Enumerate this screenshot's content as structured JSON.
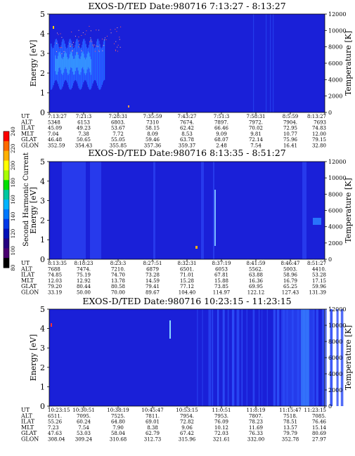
{
  "cbar": {
    "label": "Second Harmonic Current",
    "ticks": [
      "240",
      "220",
      "200",
      "180",
      "160",
      "140",
      "120",
      "100",
      "80"
    ],
    "colors": [
      "#ff0000",
      "#ff6a00",
      "#ffb000",
      "#ffff00",
      "#a8ff00",
      "#00e000",
      "#00c8a0",
      "#00b4ff",
      "#0078ff",
      "#0038e8",
      "#0010b8",
      "#240080",
      "#4a0070",
      "#000000"
    ]
  },
  "chart_data": [
    {
      "type": "heatmap",
      "title": "EXOS-D/TED   Date:980716   7:13:27 - 8:13:27",
      "ylabel": "Energy [eV]",
      "y2label": "Temperature [K]",
      "ylim": [
        0,
        5
      ],
      "yticks": [
        "0",
        "1",
        "2",
        "3",
        "4",
        "5"
      ],
      "y2lim": [
        0,
        12000
      ],
      "y2ticks": [
        "0",
        "2000",
        "4000",
        "6000",
        "8000",
        "10000",
        "12000"
      ],
      "background": "#1a20d8",
      "row_labels": [
        "UT",
        "ALT",
        "ILAT",
        "MLT",
        "GLAT",
        "GLON"
      ],
      "rows": [
        [
          "7:13:27",
          "7:21:3",
          "7:28:31",
          "7:35:59",
          "7:43:27",
          "7:51:3",
          "7:58:31",
          "8:5:59",
          "8:13:27"
        ],
        [
          "5348",
          "6153",
          "6803.",
          "7310",
          "7674.",
          "7897.",
          "7972.",
          "7904.",
          "7693"
        ],
        [
          "45.09",
          "49.23",
          "53.67",
          "58.15",
          "62.42",
          "66.46",
          "70.02",
          "72.95",
          "74.83"
        ],
        [
          "7.04",
          "7.38",
          "7.72",
          "8.09",
          "8.53",
          "9.09",
          "9.81",
          "10.77",
          "12.00"
        ],
        [
          "46.48",
          "50.65",
          "55.05",
          "59.46",
          "63.78",
          "68.07",
          "72.14",
          "75.96",
          "79.15"
        ],
        [
          "352.59",
          "354.43",
          "355.85",
          "357.36",
          "359.37",
          "2.48",
          "7.54",
          "16.41",
          "32.80"
        ]
      ]
    },
    {
      "type": "heatmap",
      "title": "EXOS-D/TED   Date:980716   8:13:35 - 8:51:27",
      "ylabel": "Energy [eV]",
      "y2label": "Temperature [K]",
      "ylim": [
        0,
        5
      ],
      "yticks": [
        "0",
        "1",
        "2",
        "3",
        "4",
        "5"
      ],
      "y2lim": [
        0,
        12000
      ],
      "y2ticks": [
        "0",
        "2000",
        "4000",
        "6000",
        "8000",
        "10000",
        "12000"
      ],
      "background": "#1a20d8",
      "row_labels": [
        "UT",
        "ALT",
        "ILAT",
        "MLT",
        "GLAT",
        "GLON"
      ],
      "rows": [
        [
          "8:13:35",
          "8:18:23",
          "8:23:3",
          "8:27:51",
          "8:32:31",
          "8:37:19",
          "8:41:59",
          "8:46:47",
          "8:51:27"
        ],
        [
          "7688",
          "7474.",
          "7210.",
          "6879",
          "6501.",
          "6053",
          "5562.",
          "5003.",
          "4410."
        ],
        [
          "74.85",
          "75.19",
          "74.70",
          "73.28",
          "71.01",
          "67.81",
          "63.88",
          "58.96",
          "53.28"
        ],
        [
          "12.03",
          "12.92",
          "13.78",
          "14.59",
          "15.28",
          "15.88",
          "16.36",
          "16.79",
          "17.15"
        ],
        [
          "79.20",
          "80.44",
          "80.58",
          "79.41",
          "77.12",
          "73.85",
          "69.95",
          "65.25",
          "59.96"
        ],
        [
          "33.19",
          "50.00",
          "70.00",
          "89.67",
          "104.40",
          "114.97",
          "122.12",
          "127.43",
          "131.39"
        ]
      ]
    },
    {
      "type": "heatmap",
      "title": "EXOS-D/TED   Date:980716   10:23:15 - 11:23:15",
      "ylabel": "Energy [eV]",
      "y2label": "Temperature [K]",
      "ylim": [
        0,
        5
      ],
      "yticks": [
        "0",
        "1",
        "2",
        "3",
        "4",
        "5"
      ],
      "y2lim": [
        0,
        12000
      ],
      "y2ticks": [
        "0",
        "2000",
        "4000",
        "6000",
        "8000",
        "10000",
        "12000"
      ],
      "background": "#1a20d8",
      "row_labels": [
        "UT",
        "ALT",
        "ILAT",
        "MLT",
        "GLAT",
        "GLON"
      ],
      "rows": [
        [
          "10:23:15",
          "10:30:51",
          "10:38:19",
          "10:45:47",
          "10:53:15",
          "11:0:51",
          "11:8:19",
          "11:15:47",
          "11:23:15"
        ],
        [
          "6511.",
          "7095.",
          "7525.",
          "7811.",
          "7954.",
          "7953.",
          "7807.",
          "7518.",
          "7085."
        ],
        [
          "55.26",
          "60.24",
          "64.80",
          "69.01",
          "72.82",
          "76.09",
          "78.23",
          "78.51",
          "76.46"
        ],
        [
          "7.23",
          "7.54",
          "7.90",
          "8.38",
          "9.06",
          "10.12",
          "11.69",
          "13.57",
          "15.14"
        ],
        [
          "47.63",
          "53.03",
          "58.04",
          "62.79",
          "67.42",
          "72.03",
          "76.33",
          "79.79",
          "80.69"
        ],
        [
          "308.04",
          "309.24",
          "310.68",
          "312.73",
          "315.96",
          "321.61",
          "332.00",
          "352.78",
          "27.97"
        ]
      ]
    }
  ]
}
